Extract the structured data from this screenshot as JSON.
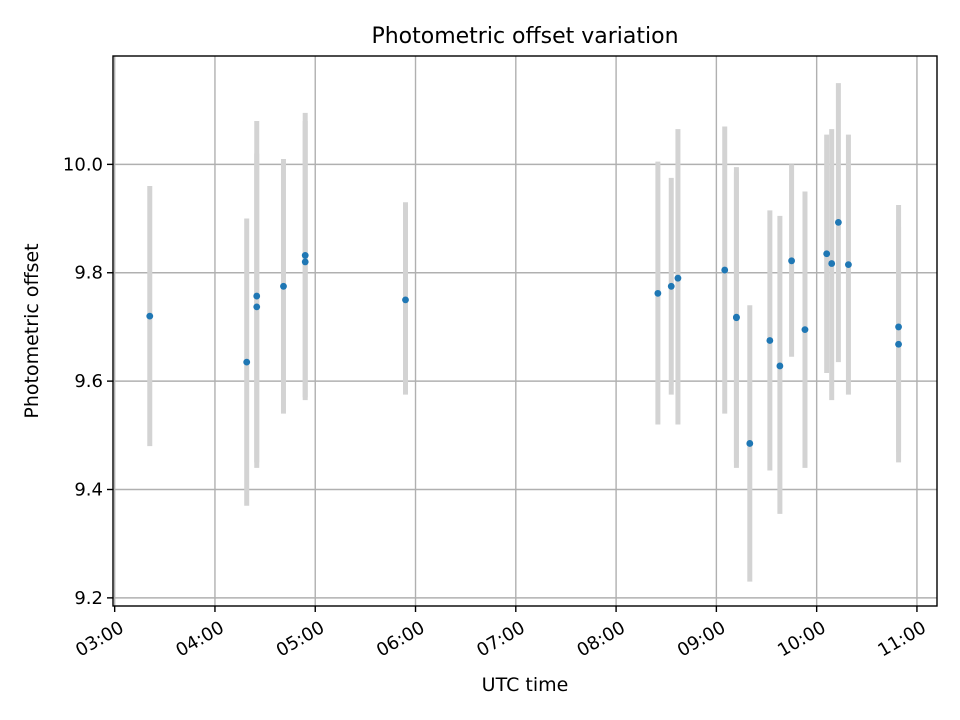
{
  "chart_data": {
    "type": "scatter",
    "title": "Photometric offset variation",
    "xlabel": "UTC time",
    "ylabel": "Photometric offset",
    "x_tick_labels": [
      "03:00",
      "04:00",
      "05:00",
      "06:00",
      "07:00",
      "08:00",
      "09:00",
      "10:00",
      "11:00"
    ],
    "y_tick_labels": [
      "9.2",
      "9.4",
      "9.6",
      "9.8",
      "10.0"
    ],
    "x_ticks": [
      "03:00",
      "04:00",
      "05:00",
      "06:00",
      "07:00",
      "08:00",
      "09:00",
      "10:00",
      "11:00"
    ],
    "y_ticks": [
      9.2,
      9.4,
      9.6,
      9.8,
      10.0
    ],
    "xlim": [
      "02:59",
      "11:12"
    ],
    "ylim": [
      9.185,
      10.2
    ],
    "grid": true,
    "colors": {
      "point": "#1f77b4",
      "errorbar": "#d3d3d3",
      "grid": "#b0b0b0"
    },
    "points": [
      {
        "t": "03:21",
        "y": 9.72,
        "ylow": 9.48,
        "yhigh": 9.96
      },
      {
        "t": "04:19",
        "y": 9.635,
        "ylow": 9.37,
        "yhigh": 9.9
      },
      {
        "t": "04:25",
        "y": 9.737,
        "ylow": 9.45,
        "yhigh": 10.02
      },
      {
        "t": "04:25",
        "y": 9.757,
        "ylow": 9.44,
        "yhigh": 10.08
      },
      {
        "t": "04:41",
        "y": 9.775,
        "ylow": 9.54,
        "yhigh": 10.01
      },
      {
        "t": "04:54",
        "y": 9.82,
        "ylow": 9.565,
        "yhigh": 10.095
      },
      {
        "t": "04:54",
        "y": 9.832,
        "ylow": 9.57,
        "yhigh": 10.08
      },
      {
        "t": "05:54",
        "y": 9.75,
        "ylow": 9.575,
        "yhigh": 9.93
      },
      {
        "t": "08:25",
        "y": 9.762,
        "ylow": 9.52,
        "yhigh": 10.005
      },
      {
        "t": "08:33",
        "y": 9.775,
        "ylow": 9.575,
        "yhigh": 9.975
      },
      {
        "t": "08:37",
        "y": 9.79,
        "ylow": 9.52,
        "yhigh": 10.065
      },
      {
        "t": "09:05",
        "y": 9.805,
        "ylow": 9.54,
        "yhigh": 10.07
      },
      {
        "t": "09:12",
        "y": 9.717,
        "ylow": 9.44,
        "yhigh": 9.995
      },
      {
        "t": "09:12",
        "y": 9.718,
        "ylow": 9.45,
        "yhigh": 9.985
      },
      {
        "t": "09:20",
        "y": 9.485,
        "ylow": 9.23,
        "yhigh": 9.74
      },
      {
        "t": "09:32",
        "y": 9.675,
        "ylow": 9.435,
        "yhigh": 9.915
      },
      {
        "t": "09:38",
        "y": 9.628,
        "ylow": 9.355,
        "yhigh": 9.905
      },
      {
        "t": "09:45",
        "y": 9.822,
        "ylow": 9.645,
        "yhigh": 10.0
      },
      {
        "t": "09:53",
        "y": 9.695,
        "ylow": 9.44,
        "yhigh": 9.95
      },
      {
        "t": "10:06",
        "y": 9.835,
        "ylow": 9.615,
        "yhigh": 10.055
      },
      {
        "t": "10:09",
        "y": 9.817,
        "ylow": 9.565,
        "yhigh": 10.065
      },
      {
        "t": "10:13",
        "y": 9.893,
        "ylow": 9.635,
        "yhigh": 10.15
      },
      {
        "t": "10:19",
        "y": 9.815,
        "ylow": 9.575,
        "yhigh": 10.055
      },
      {
        "t": "10:49",
        "y": 9.7,
        "ylow": 9.47,
        "yhigh": 9.925
      },
      {
        "t": "10:49",
        "y": 9.668,
        "ylow": 9.45,
        "yhigh": 9.885
      }
    ]
  }
}
